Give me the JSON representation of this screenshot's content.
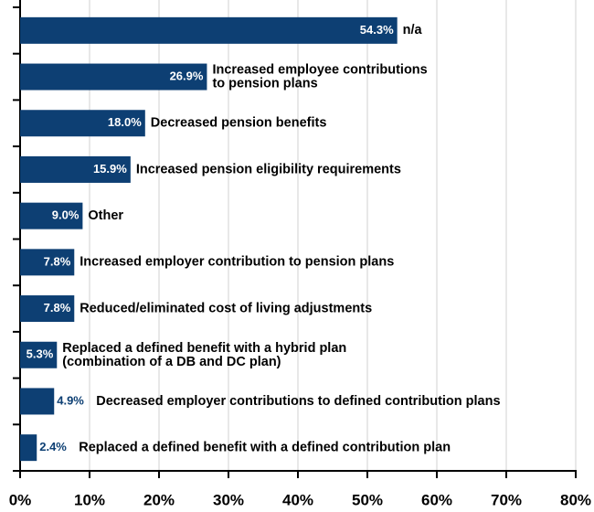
{
  "chart_data": {
    "type": "bar",
    "orientation": "horizontal",
    "categories": [
      "n/a",
      "Increased employee contributions\nto pension plans",
      "Decreased pension benefits",
      "Increased pension eligibility requirements",
      "Other",
      "Increased employer contribution to pension plans",
      "Reduced/eliminated cost of living adjustments",
      "Replaced a defined benefit with a hybrid plan\n(combination of a DB and DC plan)",
      "Decreased employer contributions to defined contribution plans",
      "Replaced a defined benefit with a defined contribution plan"
    ],
    "values": [
      54.3,
      26.9,
      18.0,
      15.9,
      9.0,
      7.8,
      7.8,
      5.3,
      4.9,
      2.4
    ],
    "value_labels": [
      "54.3%",
      "26.9%",
      "18.0%",
      "15.9%",
      "9.0%",
      "7.8%",
      "7.8%",
      "5.3%",
      "4.9%",
      "2.4%"
    ],
    "color": "#0d3f73",
    "xlim": [
      0,
      80
    ],
    "xticks": [
      {
        "value": 0,
        "label": "0%"
      },
      {
        "value": 10,
        "label": "10%"
      },
      {
        "value": 20,
        "label": "20%"
      },
      {
        "value": 30,
        "label": "30%"
      },
      {
        "value": 40,
        "label": "40%"
      },
      {
        "value": 50,
        "label": "50%"
      },
      {
        "value": 60,
        "label": "60%"
      },
      {
        "value": 70,
        "label": "70%"
      },
      {
        "value": 80,
        "label": "80%"
      }
    ],
    "grid": true
  }
}
